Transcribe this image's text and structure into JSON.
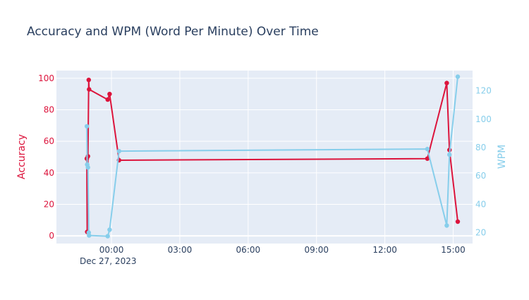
{
  "chart_data": {
    "type": "line",
    "title": "Accuracy and WPM (Word Per Minute) Over Time",
    "x_axis": {
      "range": [
        "2023-12-26 21:35",
        "2023-12-27 15:51"
      ],
      "ticks": [
        {
          "t": "2023-12-27 00:00",
          "label": "00:00"
        },
        {
          "t": "2023-12-27 03:00",
          "label": "03:00"
        },
        {
          "t": "2023-12-27 06:00",
          "label": "06:00"
        },
        {
          "t": "2023-12-27 09:00",
          "label": "09:00"
        },
        {
          "t": "2023-12-27 12:00",
          "label": "12:00"
        },
        {
          "t": "2023-12-27 15:00",
          "label": "15:00"
        }
      ],
      "date_label": "Dec 27, 2023",
      "grid": true
    },
    "y_left": {
      "label": "Accuracy",
      "range": [
        -4.9,
        104.9
      ],
      "ticks": [
        0,
        20,
        40,
        60,
        80,
        100
      ],
      "color": "#dc143c",
      "grid": true
    },
    "y_right": {
      "label": "WPM",
      "range": [
        12.3,
        134.3
      ],
      "ticks": [
        20,
        40,
        60,
        80,
        100,
        120
      ],
      "color": "#87ceeb"
    },
    "series": [
      {
        "name": "Accuracy",
        "axis": "left",
        "color": "#dc143c",
        "points": [
          {
            "t": "2023-12-26 22:55",
            "v": 49
          },
          {
            "t": "2023-12-26 22:56",
            "v": 2.5
          },
          {
            "t": "2023-12-26 22:58",
            "v": 50.5
          },
          {
            "t": "2023-12-26 23:00",
            "v": 99
          },
          {
            "t": "2023-12-26 23:01",
            "v": 93
          },
          {
            "t": "2023-12-26 23:50",
            "v": 86.5
          },
          {
            "t": "2023-12-26 23:55",
            "v": 90
          },
          {
            "t": "2023-12-27 00:20",
            "v": 48
          },
          {
            "t": "2023-12-27 13:52",
            "v": 49
          },
          {
            "t": "2023-12-27 14:43",
            "v": 97
          },
          {
            "t": "2023-12-27 14:50",
            "v": 54.5
          },
          {
            "t": "2023-12-27 15:12",
            "v": 9
          }
        ]
      },
      {
        "name": "WPM",
        "axis": "right",
        "color": "#87ceeb",
        "points": [
          {
            "t": "2023-12-26 22:55",
            "v": 95
          },
          {
            "t": "2023-12-26 22:56",
            "v": 68
          },
          {
            "t": "2023-12-26 22:58",
            "v": 66
          },
          {
            "t": "2023-12-26 23:00",
            "v": 20
          },
          {
            "t": "2023-12-26 23:01",
            "v": 18
          },
          {
            "t": "2023-12-26 23:50",
            "v": 17.5
          },
          {
            "t": "2023-12-26 23:55",
            "v": 22
          },
          {
            "t": "2023-12-27 00:20",
            "v": 77.5
          },
          {
            "t": "2023-12-27 13:52",
            "v": 79
          },
          {
            "t": "2023-12-27 14:43",
            "v": 25
          },
          {
            "t": "2023-12-27 14:50",
            "v": 75
          },
          {
            "t": "2023-12-27 15:12",
            "v": 130
          }
        ]
      }
    ]
  }
}
